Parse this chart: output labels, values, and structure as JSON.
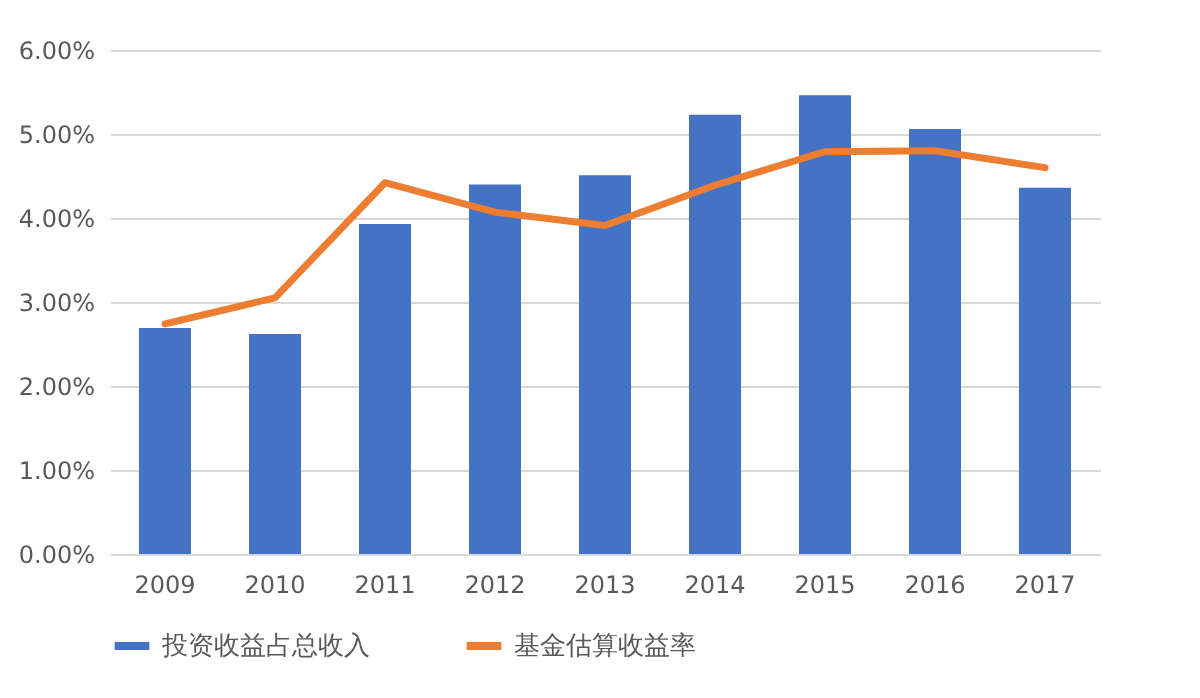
{
  "chart_data": {
    "type": "bar",
    "categories": [
      "2009",
      "2010",
      "2011",
      "2012",
      "2013",
      "2014",
      "2015",
      "2016",
      "2017"
    ],
    "series": [
      {
        "name": "投资收益占总收入",
        "color": "#4472c4",
        "values": [
          2.69,
          2.62,
          3.93,
          4.4,
          4.51,
          5.23,
          5.46,
          5.06,
          4.36
        ]
      },
      {
        "name": "基金估算收益率",
        "type": "line",
        "color": "#ed7d31",
        "values": [
          2.74,
          3.05,
          4.42,
          4.07,
          3.91,
          4.39,
          4.79,
          4.8,
          4.6
        ]
      }
    ],
    "ylim": [
      0,
      6
    ],
    "yticks": [
      {
        "value": 0,
        "label": "0.00%"
      },
      {
        "value": 1,
        "label": "1.00%"
      },
      {
        "value": 2,
        "label": "2.00%"
      },
      {
        "value": 3,
        "label": "3.00%"
      },
      {
        "value": 4,
        "label": "4.00%"
      },
      {
        "value": 5,
        "label": "5.00%"
      },
      {
        "value": 6,
        "label": "6.00%"
      }
    ],
    "grid": "y",
    "legend": "bottom"
  }
}
